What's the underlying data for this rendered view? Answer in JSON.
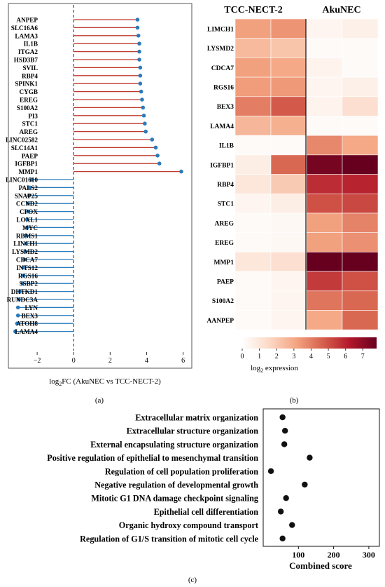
{
  "panel_labels": {
    "a": "(a)",
    "b": "(b)",
    "c": "(c)"
  },
  "chart_data": [
    {
      "id": "a",
      "type": "lollipop",
      "xlabel": "log2FC (AkuNEC vs TCC-NECT-2)",
      "xlabel_parts": {
        "pre": "log",
        "sub": "2",
        "post": "FC (AkuNEC vs TCC-NECT-2)"
      },
      "xlim": [
        -3.5,
        6.4
      ],
      "xticks": [
        -2,
        0,
        2,
        4,
        6
      ],
      "up_color": "#c0392b",
      "down_color": "#2b7bba",
      "genes": [
        "ANPEP",
        "SLC16A6",
        "LAMA3",
        "IL1B",
        "ITGA2",
        "HSD3B7",
        "SVIL",
        "RBP4",
        "SPINK1",
        "CYGB",
        "EREG",
        "S100A2",
        "PI3",
        "STC1",
        "AREG",
        "LINC02582",
        "SLC14A1",
        "PAEP",
        "IGFBP1",
        "MMP1",
        "LINC01610",
        "PALS2",
        "SNAP25",
        "CCND2",
        "CPOX",
        "LOXL1",
        "MYC",
        "RBMS1",
        "LINCH1",
        "LYSMD2",
        "CDCA7",
        "INTS12",
        "RGS16",
        "SSBP2",
        "DHTKD1",
        "RUNDC3A",
        "LYN",
        "BEX3",
        "ATOH8",
        "LAMA4"
      ],
      "values": [
        3.5,
        3.5,
        3.55,
        3.6,
        3.6,
        3.6,
        3.65,
        3.65,
        3.65,
        3.7,
        3.75,
        3.8,
        3.85,
        3.9,
        3.95,
        4.3,
        4.5,
        4.6,
        4.7,
        5.9,
        -2.3,
        -2.4,
        -2.45,
        -2.5,
        -2.5,
        -2.55,
        -2.55,
        -2.6,
        -2.6,
        -2.65,
        -2.7,
        -2.75,
        -2.75,
        -2.8,
        -2.95,
        -3.0,
        -3.05,
        -3.05,
        -3.1,
        -3.2
      ]
    },
    {
      "id": "b",
      "type": "heatmap",
      "col_groups": [
        "TCC-NECT-2",
        "AkuNEC"
      ],
      "rows": [
        "LIMCH1",
        "LYSMD2",
        "CDCA7",
        "RGS16",
        "BEX3",
        "LAMA4",
        "IL1B",
        "IGFBP1",
        "RBP4",
        "STC1",
        "AREG",
        "EREG",
        "MMP1",
        "PAEP",
        "S100A2",
        "AANPEP"
      ],
      "values": [
        [
          3.2,
          3.5,
          0.4,
          0.6
        ],
        [
          2.5,
          2.2,
          0.2,
          0.2
        ],
        [
          3.2,
          3.0,
          0.5,
          0.2
        ],
        [
          3.3,
          3.4,
          0.4,
          0.6
        ],
        [
          4.0,
          4.8,
          0.5,
          1.3
        ],
        [
          2.6,
          2.8,
          0.2,
          0.2
        ],
        [
          0.2,
          0.2,
          3.8,
          3.0
        ],
        [
          0.7,
          4.5,
          7.5,
          7.8
        ],
        [
          1.0,
          2.0,
          5.8,
          6.0
        ],
        [
          0.4,
          0.7,
          5.0,
          5.2
        ],
        [
          0.2,
          0.3,
          3.2,
          3.9
        ],
        [
          0.2,
          0.3,
          3.2,
          3.6
        ],
        [
          1.0,
          1.3,
          7.8,
          7.8
        ],
        [
          0.2,
          0.4,
          5.5,
          5.0
        ],
        [
          0.2,
          0.4,
          4.2,
          4.5
        ],
        [
          0.2,
          0.4,
          3.0,
          4.5
        ]
      ],
      "colorbar": {
        "min": 0,
        "max": 7.8,
        "ticks": [
          0,
          1,
          2,
          3,
          4,
          5,
          6,
          7
        ],
        "label_parts": {
          "pre": "log",
          "sub": "2",
          "post": " expression"
        }
      },
      "colorscale": [
        "#ffffff",
        "#fbd9c6",
        "#f4a582",
        "#d6604d",
        "#b2182b",
        "#67001f"
      ]
    },
    {
      "id": "c",
      "type": "scatter",
      "xlabel": "Combined score",
      "xlim": [
        0,
        330
      ],
      "xticks": [
        100,
        200,
        300
      ],
      "point_color": "#111111",
      "terms": [
        "Extracellular matrix organization",
        "Extracellular structure organization",
        "External encapsulating structure organization",
        "Positive regulation of epithelial to mesenchymal transition",
        "Regulation of cell population proliferation",
        "Negative regulation of developmental growth",
        "Mitotic G1 DNA damage checkpoint signaling",
        "Epithelial cell differentiation",
        "Organic hydroxy compound transport",
        "Regulation of G1/S transition of mitotic cell cycle"
      ],
      "values": [
        55,
        62,
        60,
        132,
        22,
        118,
        65,
        50,
        82,
        55
      ]
    }
  ]
}
